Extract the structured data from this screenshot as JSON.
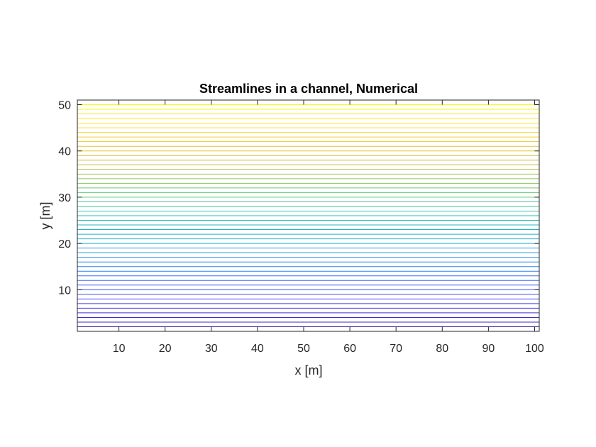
{
  "chart_data": {
    "type": "line",
    "title": "Streamlines in a channel, Numerical",
    "xlabel": "x [m]",
    "ylabel": "y [m]",
    "xlim": [
      1,
      101
    ],
    "ylim": [
      1,
      51
    ],
    "xticks": [
      10,
      20,
      30,
      40,
      50,
      60,
      70,
      80,
      90,
      100
    ],
    "yticks": [
      10,
      20,
      30,
      40,
      50
    ],
    "grid": false,
    "legend": "none",
    "colormap": "parula",
    "colormap_stops": [
      "#3e26a8",
      "#4743f8",
      "#2d7df7",
      "#2aa6d6",
      "#22c1b4",
      "#74c866",
      "#ceb932",
      "#fcd331",
      "#f9fb0e"
    ],
    "streamlines": {
      "x_start": 1,
      "x_end": 101,
      "y_levels": [
        2,
        3,
        4,
        5,
        6,
        7,
        8,
        9,
        10,
        11,
        12,
        13,
        14,
        15,
        16,
        17,
        18,
        19,
        20,
        21,
        22,
        23,
        24,
        25,
        26,
        27,
        28,
        29,
        30,
        31,
        32,
        33,
        34,
        35,
        36,
        37,
        38,
        39,
        40,
        41,
        42,
        43,
        44,
        45,
        46,
        47,
        48,
        49,
        50
      ]
    }
  }
}
